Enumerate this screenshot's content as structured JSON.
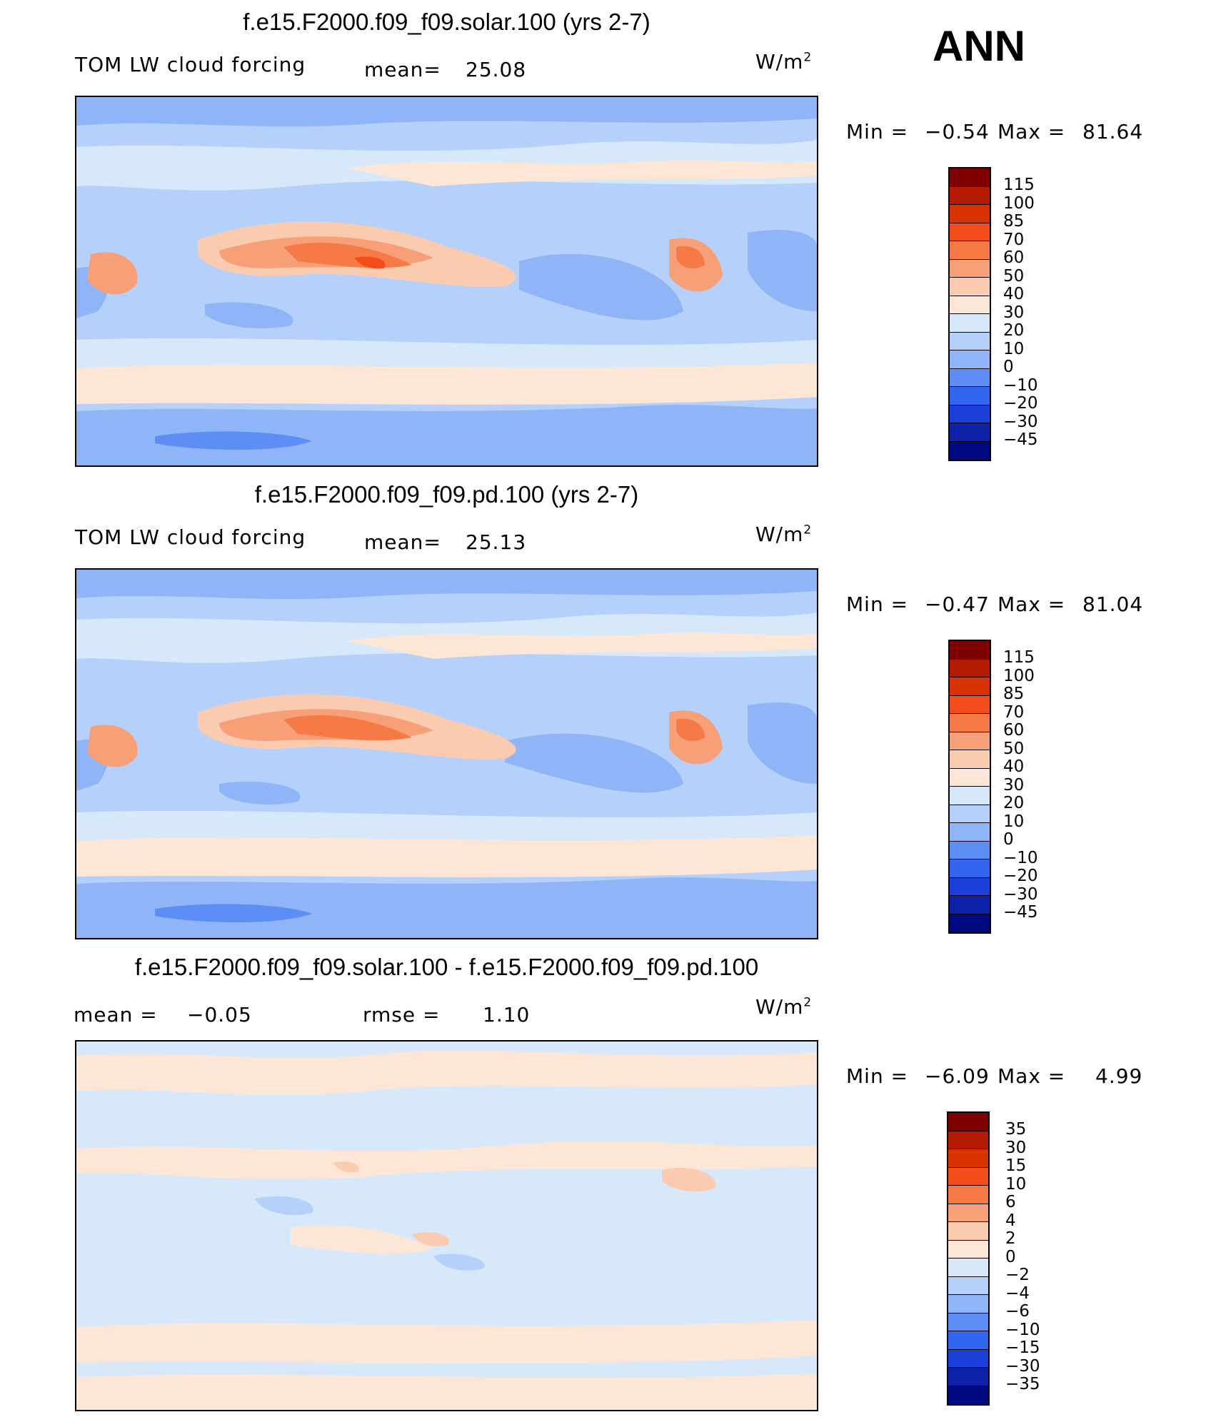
{
  "season": "ANN",
  "units": {
    "base": "W/m",
    "sup": "2"
  },
  "panels": [
    {
      "title": "f.e15.F2000.f09_f09.solar.100 (yrs 2-7)",
      "left_label": "TOM LW cloud forcing",
      "mean_label": "mean=",
      "mean_value": "25.08",
      "min_label": "Min =",
      "min_value": "−0.54",
      "max_label": "Max =",
      "max_value": "81.64",
      "palette": "full",
      "colorbar_levels": [
        "115",
        "100",
        "85",
        "70",
        "60",
        "50",
        "40",
        "30",
        "20",
        "10",
        "0",
        "−10",
        "−20",
        "−30",
        "−45"
      ]
    },
    {
      "title": "f.e15.F2000.f09_f09.pd.100 (yrs 2-7)",
      "left_label": "TOM LW cloud forcing",
      "mean_label": "mean=",
      "mean_value": "25.13",
      "min_label": "Min =",
      "min_value": "−0.47",
      "max_label": "Max =",
      "max_value": "81.04",
      "palette": "full",
      "colorbar_levels": [
        "115",
        "100",
        "85",
        "70",
        "60",
        "50",
        "40",
        "30",
        "20",
        "10",
        "0",
        "−10",
        "−20",
        "−30",
        "−45"
      ]
    },
    {
      "title": "f.e15.F2000.f09_f09.solar.100 - f.e15.F2000.f09_f09.pd.100",
      "left_label": "mean =",
      "mean_value": "−0.05",
      "rmse_label": "rmse =",
      "rmse_value": "1.10",
      "min_label": "Min =",
      "min_value": "−6.09",
      "max_label": "Max =",
      "max_value": "4.99",
      "palette": "diff",
      "colorbar_levels": [
        "35",
        "30",
        "15",
        "10",
        "6",
        "4",
        "2",
        "0",
        "−2",
        "−4",
        "−6",
        "−10",
        "−15",
        "−30",
        "−35"
      ]
    }
  ],
  "colors": {
    "full": [
      "#7f0000",
      "#b31a00",
      "#d93300",
      "#f24d1a",
      "#f57a45",
      "#f7a078",
      "#fbcbb0",
      "#fde6d6",
      "#d7e8fb",
      "#b5d1fb",
      "#8fb4f7",
      "#5d8ef5",
      "#3366f0",
      "#1a40d9",
      "#0d22a8",
      "#000a80"
    ],
    "diff": [
      "#7f0000",
      "#b31a00",
      "#d93300",
      "#f24d1a",
      "#f57a45",
      "#f7a078",
      "#fbcbb0",
      "#fde6d6",
      "#d7e8fb",
      "#b5d1fb",
      "#8fb4f7",
      "#5d8ef5",
      "#3366f0",
      "#1a40d9",
      "#0d22a8",
      "#000a80"
    ]
  }
}
